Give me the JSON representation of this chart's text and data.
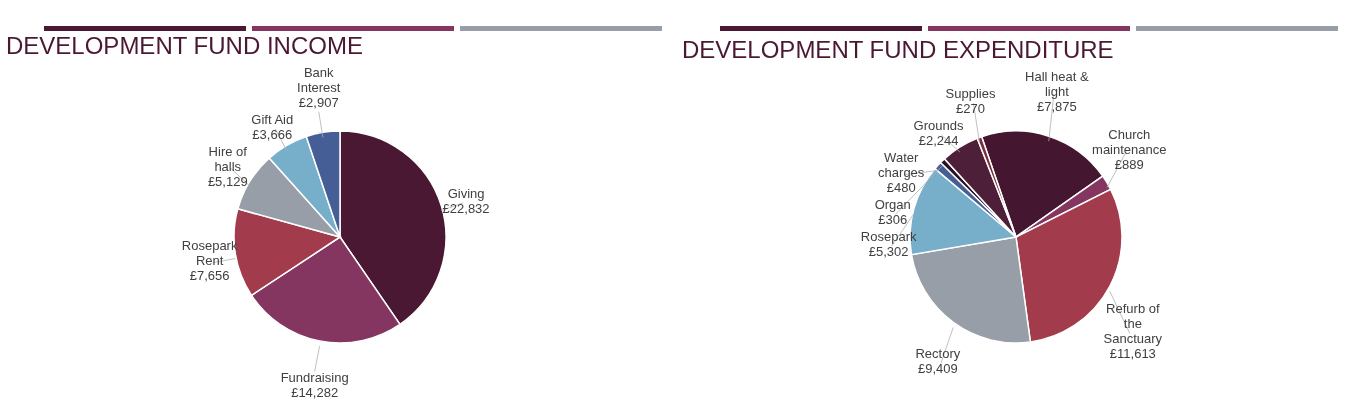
{
  "chart_data": [
    {
      "type": "pie",
      "title": "DEVELOPMENT FUND INCOME",
      "categories": [
        "Giving",
        "Fundraising",
        "Rosepark Rent",
        "Hire of halls",
        "Gift Aid",
        "Bank Interest"
      ],
      "values": [
        22832,
        14282,
        7656,
        5129,
        3666,
        2907
      ],
      "value_labels": [
        "£22,832",
        "£14,282",
        "£7,656",
        "£5,129",
        "£3,666",
        "£2,907"
      ],
      "colors": [
        "#4a1832",
        "#843660",
        "#a23b4b",
        "#989ea7",
        "#77afcb",
        "#465e96"
      ]
    },
    {
      "type": "pie",
      "title": "DEVELOPMENT FUND EXPENDITURE",
      "categories": [
        "Hall heat & light",
        "Church maintenance",
        "Refurb of the Sanctuary",
        "Rectory",
        "Rosepark",
        "Water charges",
        "Organ",
        "Grounds",
        "Supplies"
      ],
      "values": [
        7875,
        889,
        11613,
        9409,
        5302,
        480,
        306,
        2244,
        270
      ],
      "value_labels": [
        "£7,875",
        "£889",
        "£11,613",
        "£9,409",
        "£5,302",
        "£480",
        "£306",
        "£2,244",
        "£270"
      ],
      "colors": [
        "#451630",
        "#843660",
        "#a23b4b",
        "#989ea7",
        "#77afcb",
        "#465e96",
        "#2a1020",
        "#4e1f38",
        "#7a2e3c"
      ]
    }
  ]
}
